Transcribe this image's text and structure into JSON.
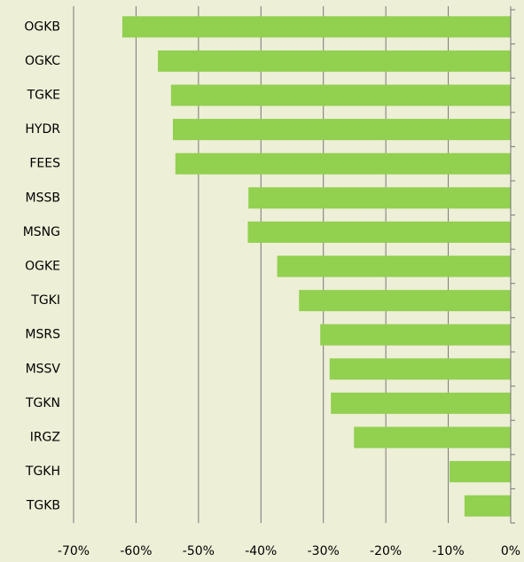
{
  "chart_data": {
    "type": "bar",
    "orientation": "horizontal",
    "categories": [
      "OGKB",
      "OGKC",
      "TGKE",
      "HYDR",
      "FEES",
      "MSSB",
      "MSNG",
      "OGKE",
      "TGKI",
      "MSRS",
      "MSSV",
      "TGKN",
      "IRGZ",
      "TGKH",
      "TGKB"
    ],
    "values": [
      -62.2,
      -56.5,
      -54.4,
      -54.1,
      -53.7,
      -42.0,
      -42.1,
      -37.4,
      -33.9,
      -30.5,
      -29.0,
      -28.8,
      -25.1,
      -9.8,
      -7.4
    ],
    "color": "#92d050",
    "xlim": [
      -70,
      0
    ],
    "xticks": [
      {
        "value": -70,
        "label": "-70%"
      },
      {
        "value": -60,
        "label": "-60%"
      },
      {
        "value": -50,
        "label": "-50%"
      },
      {
        "value": -40,
        "label": "-40%"
      },
      {
        "value": -30,
        "label": "-30%"
      },
      {
        "value": -20,
        "label": "-20%"
      },
      {
        "value": -10,
        "label": "-10%"
      },
      {
        "value": 0,
        "label": "0%"
      }
    ],
    "grid": true
  }
}
